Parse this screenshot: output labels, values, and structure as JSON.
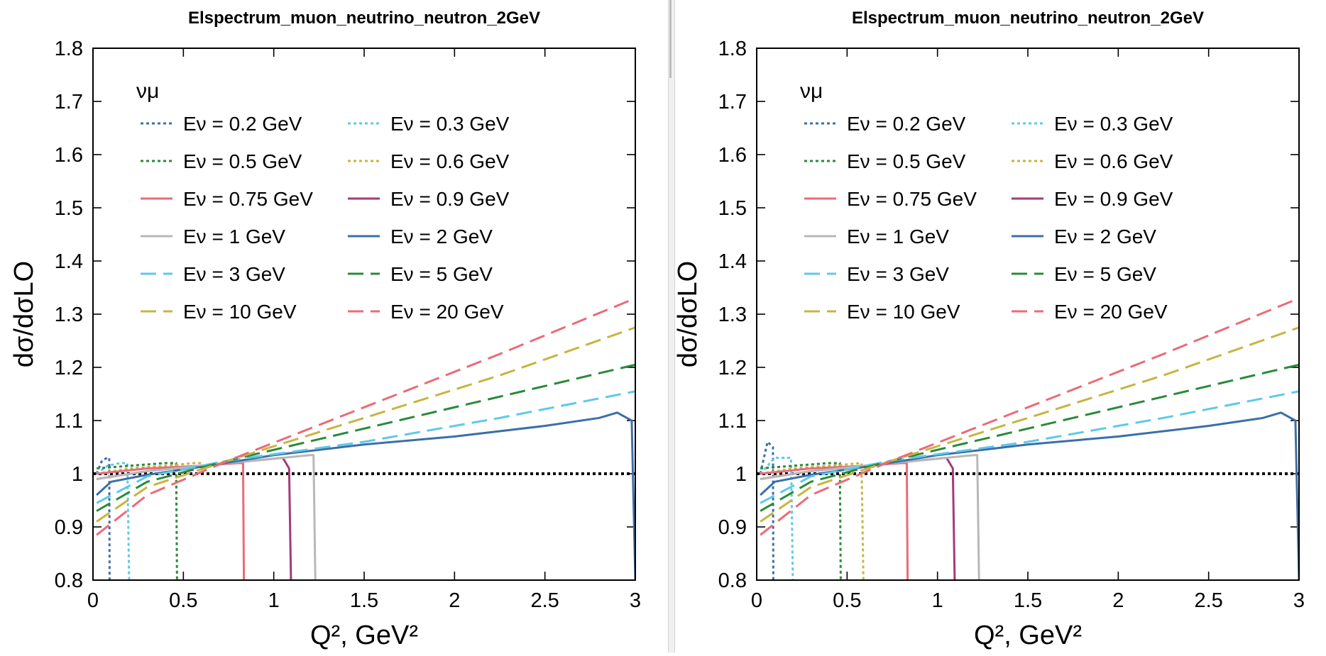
{
  "chart_data": [
    {
      "type": "line",
      "title": "Elspectrum_muon_neutrino_neutron_2GeV",
      "xlabel": "Q², GeV²",
      "ylabel": "dσ/dσLO",
      "xlim": [
        0,
        3
      ],
      "ylim": [
        0.8,
        1.8
      ],
      "xticks": [
        "0",
        "0.5",
        "1",
        "1.5",
        "2",
        "2.5",
        "3"
      ],
      "yticks": [
        "0.8",
        "0.9",
        "1",
        "1.1",
        "1.2",
        "1.3",
        "1.4",
        "1.5",
        "1.6",
        "1.7",
        "1.8"
      ],
      "legend_title": "νμ",
      "legend_position": "top-left",
      "reference_line": {
        "y": 1.0,
        "style": "dotted",
        "color": "#000000"
      },
      "series": [
        {
          "name": "Eν = 0.2 GeV",
          "color": "#3b6fa8",
          "dash": "dot",
          "x": [
            0.02,
            0.05,
            0.08,
            0.09,
            0.092
          ],
          "y": [
            1.0,
            1.025,
            1.03,
            1.03,
            0.8
          ]
        },
        {
          "name": "Eν = 0.3 GeV",
          "color": "#5ec8ea",
          "dash": "dot",
          "x": [
            0.02,
            0.08,
            0.15,
            0.19,
            0.2
          ],
          "y": [
            1.0,
            1.015,
            1.02,
            1.02,
            0.8
          ]
        },
        {
          "name": "Eν = 0.5 GeV",
          "color": "#2a8a3a",
          "dash": "dot",
          "x": [
            0.02,
            0.2,
            0.4,
            0.46,
            0.465
          ],
          "y": [
            1.01,
            1.015,
            1.02,
            1.02,
            0.8
          ]
        },
        {
          "name": "Eν = 0.6 GeV",
          "color": "#c8b440",
          "dash": "dot",
          "x": [
            0.02,
            0.2,
            0.4,
            0.56,
            0.6
          ],
          "y": [
            1.0,
            1.01,
            1.015,
            1.02,
            1.02
          ]
        },
        {
          "name": "Eν = 0.75 GeV",
          "color": "#ea6b78",
          "dash": "solid",
          "x": [
            0.02,
            0.3,
            0.6,
            0.8,
            0.83,
            0.835
          ],
          "y": [
            1.0,
            1.01,
            1.015,
            1.02,
            1.02,
            0.8
          ]
        },
        {
          "name": "Eν = 0.9 GeV",
          "color": "#a33a7a",
          "dash": "solid",
          "x": [
            0.02,
            0.3,
            0.6,
            0.9,
            1.05,
            1.085,
            1.095
          ],
          "y": [
            0.99,
            1.005,
            1.015,
            1.025,
            1.03,
            1.01,
            0.8
          ]
        },
        {
          "name": "Eν = 1 GeV",
          "color": "#b8b8b8",
          "dash": "solid",
          "x": [
            0.02,
            0.3,
            0.6,
            0.9,
            1.2,
            1.22,
            1.23
          ],
          "y": [
            0.99,
            1.005,
            1.015,
            1.025,
            1.035,
            1.035,
            0.8
          ]
        },
        {
          "name": "Eν = 2 GeV",
          "color": "#3b6fa8",
          "dash": "solid",
          "x": [
            0.02,
            0.1,
            0.3,
            0.6,
            1.0,
            1.5,
            2.0,
            2.5,
            2.8,
            2.9,
            2.98,
            3.0
          ],
          "y": [
            0.96,
            0.985,
            0.998,
            1.013,
            1.035,
            1.055,
            1.07,
            1.09,
            1.105,
            1.115,
            1.1,
            0.8
          ]
        },
        {
          "name": "Eν = 3 GeV",
          "color": "#5ec8ea",
          "dash": "dash",
          "x": [
            0.02,
            0.3,
            0.75,
            1.5,
            2.25,
            3.0
          ],
          "y": [
            0.945,
            0.995,
            1.025,
            1.06,
            1.105,
            1.155
          ]
        },
        {
          "name": "Eν = 5 GeV",
          "color": "#2a8a3a",
          "dash": "dash",
          "x": [
            0.02,
            0.3,
            0.75,
            1.5,
            2.25,
            3.0
          ],
          "y": [
            0.93,
            0.985,
            1.025,
            1.085,
            1.145,
            1.205
          ]
        },
        {
          "name": "Eν = 10 GeV",
          "color": "#c8b440",
          "dash": "dash",
          "x": [
            0.02,
            0.3,
            0.75,
            1.5,
            2.25,
            3.0
          ],
          "y": [
            0.91,
            0.975,
            1.025,
            1.105,
            1.185,
            1.275
          ]
        },
        {
          "name": "Eν = 20 GeV",
          "color": "#ea6b78",
          "dash": "dash",
          "x": [
            0.02,
            0.3,
            0.75,
            1.5,
            2.25,
            3.0
          ],
          "y": [
            0.885,
            0.96,
            1.025,
            1.125,
            1.225,
            1.33
          ]
        }
      ]
    },
    {
      "type": "line",
      "title": "Elspectrum_muon_neutrino_neutron_2GeV",
      "xlabel": "Q², GeV²",
      "ylabel": "dσ/dσLO",
      "xlim": [
        0,
        3
      ],
      "ylim": [
        0.8,
        1.8
      ],
      "xticks": [
        "0",
        "0.5",
        "1",
        "1.5",
        "2",
        "2.5",
        "3"
      ],
      "yticks": [
        "0.8",
        "0.9",
        "1",
        "1.1",
        "1.2",
        "1.3",
        "1.4",
        "1.5",
        "1.6",
        "1.7",
        "1.8"
      ],
      "legend_title": "νμ",
      "legend_position": "top-left",
      "reference_line": {
        "y": 1.0,
        "style": "dotted",
        "color": "#000000"
      },
      "series": [
        {
          "name": "Eν = 0.2 GeV",
          "color": "#3b6fa8",
          "dash": "dot",
          "x": [
            0.02,
            0.06,
            0.09,
            0.092
          ],
          "y": [
            1.0,
            1.06,
            1.05,
            0.8
          ]
        },
        {
          "name": "Eν = 0.3 GeV",
          "color": "#5ec8ea",
          "dash": "dot",
          "x": [
            0.02,
            0.1,
            0.19,
            0.2
          ],
          "y": [
            1.0,
            1.03,
            1.03,
            0.8
          ]
        },
        {
          "name": "Eν = 0.5 GeV",
          "color": "#2a8a3a",
          "dash": "dot",
          "x": [
            0.02,
            0.2,
            0.4,
            0.46,
            0.465
          ],
          "y": [
            1.01,
            1.015,
            1.02,
            1.02,
            0.8
          ]
        },
        {
          "name": "Eν = 0.6 GeV",
          "color": "#c8b440",
          "dash": "dot",
          "x": [
            0.02,
            0.2,
            0.4,
            0.58,
            0.59
          ],
          "y": [
            1.0,
            1.01,
            1.015,
            1.02,
            0.8
          ]
        },
        {
          "name": "Eν = 0.75 GeV",
          "color": "#ea6b78",
          "dash": "solid",
          "x": [
            0.02,
            0.3,
            0.6,
            0.8,
            0.83,
            0.835
          ],
          "y": [
            1.0,
            1.01,
            1.015,
            1.02,
            1.02,
            0.8
          ]
        },
        {
          "name": "Eν = 0.9 GeV",
          "color": "#a33a7a",
          "dash": "solid",
          "x": [
            0.02,
            0.3,
            0.6,
            0.9,
            1.05,
            1.085,
            1.095
          ],
          "y": [
            0.99,
            1.005,
            1.015,
            1.025,
            1.03,
            1.01,
            0.8
          ]
        },
        {
          "name": "Eν = 1 GeV",
          "color": "#b8b8b8",
          "dash": "solid",
          "x": [
            0.02,
            0.3,
            0.6,
            0.9,
            1.2,
            1.22,
            1.23
          ],
          "y": [
            0.99,
            1.005,
            1.015,
            1.025,
            1.035,
            1.035,
            0.8
          ]
        },
        {
          "name": "Eν = 2 GeV",
          "color": "#3b6fa8",
          "dash": "solid",
          "x": [
            0.02,
            0.1,
            0.3,
            0.6,
            1.0,
            1.5,
            2.0,
            2.5,
            2.8,
            2.9,
            2.98,
            3.0
          ],
          "y": [
            0.96,
            0.985,
            0.998,
            1.013,
            1.035,
            1.055,
            1.07,
            1.09,
            1.105,
            1.115,
            1.1,
            0.8
          ]
        },
        {
          "name": "Eν = 3 GeV",
          "color": "#5ec8ea",
          "dash": "dash",
          "x": [
            0.02,
            0.3,
            0.75,
            1.5,
            2.25,
            3.0
          ],
          "y": [
            0.945,
            0.995,
            1.025,
            1.06,
            1.105,
            1.155
          ]
        },
        {
          "name": "Eν = 5 GeV",
          "color": "#2a8a3a",
          "dash": "dash",
          "x": [
            0.02,
            0.3,
            0.75,
            1.5,
            2.25,
            3.0
          ],
          "y": [
            0.93,
            0.985,
            1.025,
            1.085,
            1.145,
            1.205
          ]
        },
        {
          "name": "Eν = 10 GeV",
          "color": "#c8b440",
          "dash": "dash",
          "x": [
            0.02,
            0.3,
            0.75,
            1.5,
            2.25,
            3.0
          ],
          "y": [
            0.91,
            0.975,
            1.025,
            1.105,
            1.185,
            1.275
          ]
        },
        {
          "name": "Eν = 20 GeV",
          "color": "#ea6b78",
          "dash": "dash",
          "x": [
            0.02,
            0.3,
            0.75,
            1.5,
            2.25,
            3.0
          ],
          "y": [
            0.885,
            0.96,
            1.025,
            1.125,
            1.225,
            1.33
          ]
        }
      ]
    }
  ]
}
